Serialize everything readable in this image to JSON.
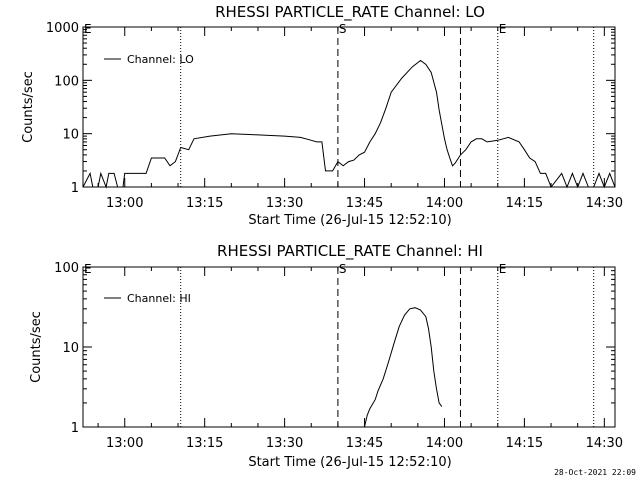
{
  "chart_data": [
    {
      "type": "line",
      "title": "RHESSI PARTICLE_RATE Channel: LO",
      "xlabel": "Start Time (26-Jul-15 12:52:10)",
      "ylabel": "Counts/sec",
      "y_scale": "log",
      "ylim": [
        1,
        1000
      ],
      "y_ticks": [
        "1",
        "10",
        "100",
        "1000"
      ],
      "xlim": [
        "12:52:10",
        "14:32:00"
      ],
      "x_ticks": [
        "13:00",
        "13:15",
        "13:30",
        "13:45",
        "14:00",
        "14:15",
        "14:30"
      ],
      "legend_position": "top-left",
      "series": [
        {
          "name": "Channel: LO",
          "points": [
            [
              "12:52:10",
              1
            ],
            [
              "12:53:30",
              1.8
            ],
            [
              "12:54:00",
              1
            ],
            [
              "12:55:00",
              1
            ],
            [
              "12:55:30",
              1.8
            ],
            [
              "12:56:30",
              1
            ],
            [
              "12:57:00",
              1.8
            ],
            [
              "12:58:00",
              1.8
            ],
            [
              "12:58:40",
              1
            ],
            [
              "12:59:40",
              1
            ],
            [
              "13:00:00",
              1.8
            ],
            [
              "13:04:00",
              1.8
            ],
            [
              "13:05:00",
              3.5
            ],
            [
              "13:07:30",
              3.5
            ],
            [
              "13:08:30",
              2.5
            ],
            [
              "13:09:30",
              3
            ],
            [
              "13:10:30",
              5.5
            ],
            [
              "13:12:00",
              5
            ],
            [
              "13:13:00",
              8
            ],
            [
              "13:16:00",
              9
            ],
            [
              "13:20:00",
              10
            ],
            [
              "13:25:00",
              9.5
            ],
            [
              "13:30:00",
              9
            ],
            [
              "13:33:00",
              8.5
            ],
            [
              "13:35:00",
              7.5
            ],
            [
              "13:36:00",
              7
            ],
            [
              "13:37:00",
              7
            ],
            [
              "13:37:40",
              2
            ],
            [
              "13:39:00",
              2
            ],
            [
              "13:40:00",
              3
            ],
            [
              "13:41:00",
              2.5
            ],
            [
              "13:42:00",
              3
            ],
            [
              "13:43:00",
              3.2
            ],
            [
              "13:44:00",
              4
            ],
            [
              "13:45:00",
              4.5
            ],
            [
              "13:46:00",
              7
            ],
            [
              "13:47:00",
              10
            ],
            [
              "13:48:00",
              16
            ],
            [
              "13:49:00",
              30
            ],
            [
              "13:50:00",
              60
            ],
            [
              "13:52:00",
              110
            ],
            [
              "13:54:00",
              180
            ],
            [
              "13:55:30",
              235
            ],
            [
              "13:56:30",
              200
            ],
            [
              "13:57:30",
              140
            ],
            [
              "13:58:30",
              60
            ],
            [
              "13:59:00",
              28
            ],
            [
              "13:59:30",
              15
            ],
            [
              "14:00:00",
              8
            ],
            [
              "14:00:30",
              5
            ],
            [
              "14:01:00",
              3.5
            ],
            [
              "14:01:30",
              2.5
            ],
            [
              "14:02:00",
              2.8
            ],
            [
              "14:03:00",
              4
            ],
            [
              "14:04:00",
              5
            ],
            [
              "14:05:00",
              7
            ],
            [
              "14:06:00",
              8
            ],
            [
              "14:07:00",
              8
            ],
            [
              "14:08:00",
              7
            ],
            [
              "14:10:00",
              7.5
            ],
            [
              "14:12:00",
              8.5
            ],
            [
              "14:14:00",
              7
            ],
            [
              "14:15:00",
              5
            ],
            [
              "14:16:00",
              3.5
            ],
            [
              "14:17:00",
              3
            ],
            [
              "14:18:00",
              1.8
            ],
            [
              "14:19:00",
              1.8
            ],
            [
              "14:20:00",
              1
            ],
            [
              "14:22:00",
              1.8
            ],
            [
              "14:23:00",
              1
            ],
            [
              "14:24:00",
              1.8
            ],
            [
              "14:25:00",
              1
            ],
            [
              "14:26:00",
              1.8
            ],
            [
              "14:27:00",
              1
            ],
            [
              "14:28:00",
              1
            ],
            [
              "14:29:00",
              1.8
            ],
            [
              "14:30:00",
              1
            ],
            [
              "14:31:00",
              1.8
            ],
            [
              "14:32:00",
              1
            ]
          ]
        }
      ]
    },
    {
      "type": "line",
      "title": "RHESSI PARTICLE_RATE Channel: HI",
      "xlabel": "Start Time (26-Jul-15 12:52:10)",
      "ylabel": "Counts/sec",
      "y_scale": "log",
      "ylim": [
        1,
        100
      ],
      "y_ticks": [
        "1",
        "10",
        "100"
      ],
      "xlim": [
        "12:52:10",
        "14:32:00"
      ],
      "x_ticks": [
        "13:00",
        "13:15",
        "13:30",
        "13:45",
        "14:00",
        "14:15",
        "14:30"
      ],
      "legend_position": "top-left",
      "series": [
        {
          "name": "Channel: HI",
          "points": [
            [
              "13:45:00",
              1
            ],
            [
              "13:45:30",
              1.4
            ],
            [
              "13:46:00",
              1.7
            ],
            [
              "13:47:00",
              2.2
            ],
            [
              "13:47:30",
              2.8
            ],
            [
              "13:48:30",
              4
            ],
            [
              "13:49:30",
              6.5
            ],
            [
              "13:50:30",
              11
            ],
            [
              "13:51:30",
              18
            ],
            [
              "13:52:30",
              25
            ],
            [
              "13:53:30",
              30
            ],
            [
              "13:54:30",
              31
            ],
            [
              "13:55:30",
              29
            ],
            [
              "13:56:30",
              24
            ],
            [
              "13:57:00",
              17
            ],
            [
              "13:57:30",
              10
            ],
            [
              "13:58:00",
              5
            ],
            [
              "13:58:30",
              3
            ],
            [
              "13:59:00",
              2
            ],
            [
              "13:59:30",
              1.8
            ]
          ]
        }
      ]
    }
  ],
  "markers": {
    "start_label": "S",
    "end_label": "E",
    "edge_label": "E",
    "dotted_times": [
      "13:10:30",
      "14:10:00",
      "14:28:00"
    ],
    "dashed_times": [
      "13:40:00",
      "14:03:00"
    ]
  },
  "timestamp": "28-Oct-2021 22:09"
}
